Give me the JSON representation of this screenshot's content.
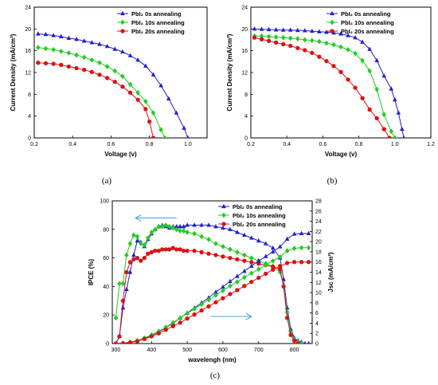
{
  "chart_data": [
    {
      "type": "line",
      "caption": "(a)",
      "xlabel": "Voltage (v)",
      "ylabel": "Current Density (mA/cm²)",
      "xlim": [
        0.2,
        1.1
      ],
      "ylim": [
        0,
        24
      ],
      "xticks": [
        "0.2",
        "0.4",
        "0.6",
        "0.8",
        "1.0"
      ],
      "yticks": [
        "0",
        "4",
        "8",
        "12",
        "16",
        "20",
        "24"
      ],
      "legend_position": "top-right",
      "series": [
        {
          "name": "PbI₂ 0s annealing",
          "color": "#1f1fcc",
          "marker": "triangle",
          "x": [
            0.22,
            0.26,
            0.3,
            0.34,
            0.38,
            0.42,
            0.46,
            0.5,
            0.54,
            0.58,
            0.62,
            0.66,
            0.7,
            0.74,
            0.78,
            0.82,
            0.86,
            0.9,
            0.94,
            0.98,
            1.0
          ],
          "y": [
            19.1,
            19.0,
            18.8,
            18.6,
            18.3,
            18.1,
            17.8,
            17.5,
            17.2,
            16.8,
            16.3,
            15.8,
            15.1,
            14.3,
            13.2,
            11.6,
            9.6,
            7.2,
            4.6,
            1.8,
            0
          ]
        },
        {
          "name": "PbI₂ 10s annealing",
          "color": "#22cc22",
          "marker": "diamond",
          "x": [
            0.22,
            0.26,
            0.3,
            0.34,
            0.38,
            0.42,
            0.46,
            0.5,
            0.54,
            0.58,
            0.62,
            0.66,
            0.7,
            0.74,
            0.78,
            0.82,
            0.86,
            0.88
          ],
          "y": [
            16.6,
            16.4,
            16.2,
            15.9,
            15.6,
            15.2,
            14.8,
            14.3,
            13.8,
            13.1,
            12.3,
            11.3,
            9.8,
            8.3,
            6.7,
            4.6,
            1.5,
            0
          ]
        },
        {
          "name": "PbI₂ 20s annealing",
          "color": "#dd1111",
          "marker": "circle",
          "x": [
            0.22,
            0.26,
            0.3,
            0.34,
            0.38,
            0.42,
            0.46,
            0.5,
            0.54,
            0.58,
            0.62,
            0.66,
            0.7,
            0.74,
            0.78,
            0.8,
            0.82
          ],
          "y": [
            13.8,
            13.7,
            13.6,
            13.4,
            13.1,
            12.8,
            12.5,
            12.1,
            11.6,
            11.0,
            10.3,
            9.4,
            8.3,
            7.0,
            5.3,
            3.0,
            0
          ]
        }
      ]
    },
    {
      "type": "line",
      "caption": "(b)",
      "xlabel": "Voltage (v)",
      "ylabel": "Current Density (mA/cm²)",
      "xlim": [
        0.2,
        1.2
      ],
      "ylim": [
        0,
        24
      ],
      "xticks": [
        "0.2",
        "0.4",
        "0.6",
        "0.8",
        "1.0",
        "1.2"
      ],
      "yticks": [
        "0",
        "4",
        "8",
        "12",
        "16",
        "20",
        "24"
      ],
      "legend_position": "top-right",
      "series": [
        {
          "name": "PbI₂ 0s annealing",
          "color": "#1f1fcc",
          "marker": "triangle",
          "x": [
            0.22,
            0.26,
            0.3,
            0.34,
            0.38,
            0.42,
            0.46,
            0.5,
            0.54,
            0.58,
            0.62,
            0.66,
            0.7,
            0.74,
            0.78,
            0.82,
            0.86,
            0.9,
            0.94,
            0.98,
            1.0,
            1.02,
            1.04,
            1.05
          ],
          "y": [
            20.0,
            19.95,
            19.9,
            19.85,
            19.8,
            19.8,
            19.75,
            19.7,
            19.6,
            19.5,
            19.4,
            19.3,
            19.1,
            18.8,
            18.4,
            17.6,
            16.3,
            14.2,
            11.4,
            9.0,
            7.0,
            4.6,
            1.6,
            0
          ]
        },
        {
          "name": "PbI₂ 10s annealing",
          "color": "#22cc22",
          "marker": "diamond",
          "x": [
            0.22,
            0.26,
            0.3,
            0.34,
            0.38,
            0.42,
            0.46,
            0.5,
            0.54,
            0.58,
            0.62,
            0.66,
            0.7,
            0.74,
            0.78,
            0.82,
            0.86,
            0.9,
            0.94,
            0.98,
            1.0
          ],
          "y": [
            18.7,
            18.7,
            18.6,
            18.5,
            18.4,
            18.3,
            18.2,
            18.0,
            17.9,
            17.7,
            17.4,
            17.1,
            16.7,
            16.2,
            15.5,
            14.2,
            12.3,
            8.9,
            4.3,
            1.2,
            0
          ]
        },
        {
          "name": "PbI₂ 20s annealing",
          "color": "#dd1111",
          "marker": "circle",
          "x": [
            0.22,
            0.26,
            0.3,
            0.34,
            0.38,
            0.42,
            0.46,
            0.5,
            0.54,
            0.58,
            0.62,
            0.66,
            0.7,
            0.74,
            0.78,
            0.82,
            0.86,
            0.9,
            0.94,
            0.97
          ],
          "y": [
            18.4,
            18.1,
            17.8,
            17.5,
            17.2,
            16.9,
            16.5,
            16.1,
            15.6,
            14.9,
            14.1,
            13.2,
            12.1,
            10.7,
            9.2,
            7.3,
            5.2,
            3.6,
            1.6,
            0
          ]
        }
      ]
    },
    {
      "type": "line",
      "caption": "(c)",
      "xlabel": "wavelengh (nm)",
      "ylabel": "IPCE (%)",
      "y2label": "Jsc (mA/cm²)",
      "xlim": [
        290,
        850
      ],
      "ylim": [
        0,
        100
      ],
      "y2lim": [
        0,
        28
      ],
      "xticks": [
        "300",
        "400",
        "500",
        "600",
        "700",
        "800"
      ],
      "yticks": [
        "0",
        "20",
        "40",
        "60",
        "80",
        "100"
      ],
      "y2ticks": [
        "0",
        "2",
        "4",
        "6",
        "8",
        "10",
        "12",
        "14",
        "16",
        "18",
        "20",
        "22",
        "24",
        "26",
        "28"
      ],
      "legend_position": "top-right",
      "series": [
        {
          "name": "PbI₂ 0s annealing",
          "color": "#1f1fcc",
          "marker": "triangle",
          "axis": "left",
          "x": [
            300,
            310,
            320,
            330,
            340,
            350,
            360,
            370,
            380,
            390,
            400,
            410,
            420,
            430,
            440,
            450,
            460,
            470,
            480,
            490,
            500,
            520,
            540,
            560,
            580,
            600,
            620,
            640,
            660,
            680,
            700,
            720,
            740,
            760,
            770,
            780,
            790,
            800,
            810,
            820,
            830,
            840
          ],
          "y": [
            0,
            5,
            25,
            38,
            50,
            62,
            72,
            71,
            68,
            73,
            77,
            80,
            82,
            83,
            82,
            81,
            82,
            82,
            82,
            82,
            83,
            83,
            83,
            83,
            82,
            81,
            80,
            78,
            76,
            74,
            72,
            70,
            67,
            60,
            45,
            25,
            10,
            4,
            2,
            1,
            0,
            0
          ]
        },
        {
          "name": "PbI₂ 10s annealing",
          "color": "#22cc22",
          "marker": "diamond",
          "axis": "left",
          "x": [
            300,
            310,
            320,
            330,
            340,
            350,
            360,
            370,
            380,
            390,
            400,
            410,
            420,
            430,
            440,
            450,
            460,
            470,
            480,
            490,
            500,
            520,
            540,
            560,
            580,
            600,
            620,
            640,
            660,
            680,
            700,
            720,
            740,
            760,
            770,
            780,
            790,
            800,
            810,
            820
          ],
          "y": [
            18,
            42,
            42,
            62,
            70,
            76,
            75,
            70,
            69,
            74,
            78,
            80,
            82,
            82,
            83,
            82,
            81,
            80,
            79,
            79,
            78,
            77,
            75,
            73,
            70,
            68,
            66,
            64,
            62,
            60,
            58,
            56,
            54,
            50,
            40,
            22,
            8,
            3,
            1,
            0
          ]
        },
        {
          "name": "PbI₂ 20s annealing",
          "color": "#dd1111",
          "marker": "circle",
          "axis": "left",
          "x": [
            310,
            320,
            330,
            340,
            350,
            360,
            370,
            380,
            390,
            400,
            410,
            420,
            430,
            440,
            450,
            460,
            470,
            480,
            490,
            500,
            520,
            540,
            560,
            580,
            600,
            620,
            640,
            660,
            680,
            700,
            720,
            740,
            760,
            770,
            780,
            790,
            800,
            810
          ],
          "y": [
            5,
            30,
            50,
            57,
            59,
            60,
            58,
            60,
            63,
            64,
            65,
            65,
            66,
            66,
            66,
            67,
            66,
            66,
            65,
            65,
            65,
            64,
            63,
            62,
            61,
            60,
            59,
            58,
            57,
            56,
            55,
            54,
            52,
            40,
            18,
            6,
            2,
            0
          ]
        },
        {
          "name": "",
          "color": "#1f1fcc",
          "marker": "triangle",
          "axis": "right",
          "x": [
            300,
            320,
            340,
            360,
            380,
            400,
            420,
            440,
            460,
            480,
            500,
            520,
            540,
            560,
            580,
            600,
            620,
            640,
            660,
            680,
            700,
            720,
            740,
            760,
            780,
            800,
            820,
            840
          ],
          "y": [
            0,
            0.05,
            0.2,
            0.5,
            1.0,
            1.6,
            2.3,
            3.1,
            4.0,
            5.0,
            6.0,
            7.0,
            8.0,
            9.0,
            10.1,
            11.1,
            12.2,
            13.2,
            14.2,
            15.2,
            16.2,
            17.1,
            18.0,
            19.0,
            20.5,
            21.5,
            21.6,
            21.6
          ]
        },
        {
          "name": "",
          "color": "#22cc22",
          "marker": "diamond",
          "axis": "right",
          "x": [
            300,
            320,
            340,
            360,
            380,
            400,
            420,
            440,
            460,
            480,
            500,
            520,
            540,
            560,
            580,
            600,
            620,
            640,
            660,
            680,
            700,
            720,
            740,
            760,
            780,
            800,
            820,
            840
          ],
          "y": [
            0,
            0.1,
            0.3,
            0.6,
            1.1,
            1.7,
            2.4,
            3.2,
            4.1,
            5.0,
            5.9,
            6.8,
            7.7,
            8.6,
            9.5,
            10.4,
            11.3,
            12.1,
            13.0,
            13.8,
            14.6,
            15.4,
            16.2,
            17.0,
            18.2,
            18.7,
            18.8,
            18.8
          ]
        },
        {
          "name": "",
          "color": "#dd1111",
          "marker": "circle",
          "axis": "right",
          "x": [
            300,
            320,
            340,
            360,
            380,
            400,
            420,
            440,
            460,
            480,
            500,
            520,
            540,
            560,
            580,
            600,
            620,
            640,
            660,
            680,
            700,
            720,
            740,
            760,
            780,
            800,
            820,
            840
          ],
          "y": [
            0,
            0.05,
            0.2,
            0.45,
            0.9,
            1.4,
            2.0,
            2.7,
            3.4,
            4.1,
            4.9,
            5.7,
            6.5,
            7.3,
            8.1,
            8.9,
            9.7,
            10.5,
            11.3,
            12.1,
            12.9,
            13.7,
            14.5,
            15.2,
            15.8,
            16.0,
            16.0,
            16.0
          ]
        }
      ],
      "arrows": [
        {
          "direction": "left",
          "color": "#4aa8d8",
          "from": [
            470,
            88
          ],
          "to": [
            355,
            88
          ],
          "axis": "left"
        },
        {
          "direction": "right",
          "color": "#4aa8d8",
          "from": [
            565,
            19
          ],
          "to": [
            680,
            19
          ],
          "axis": "left"
        }
      ]
    }
  ]
}
